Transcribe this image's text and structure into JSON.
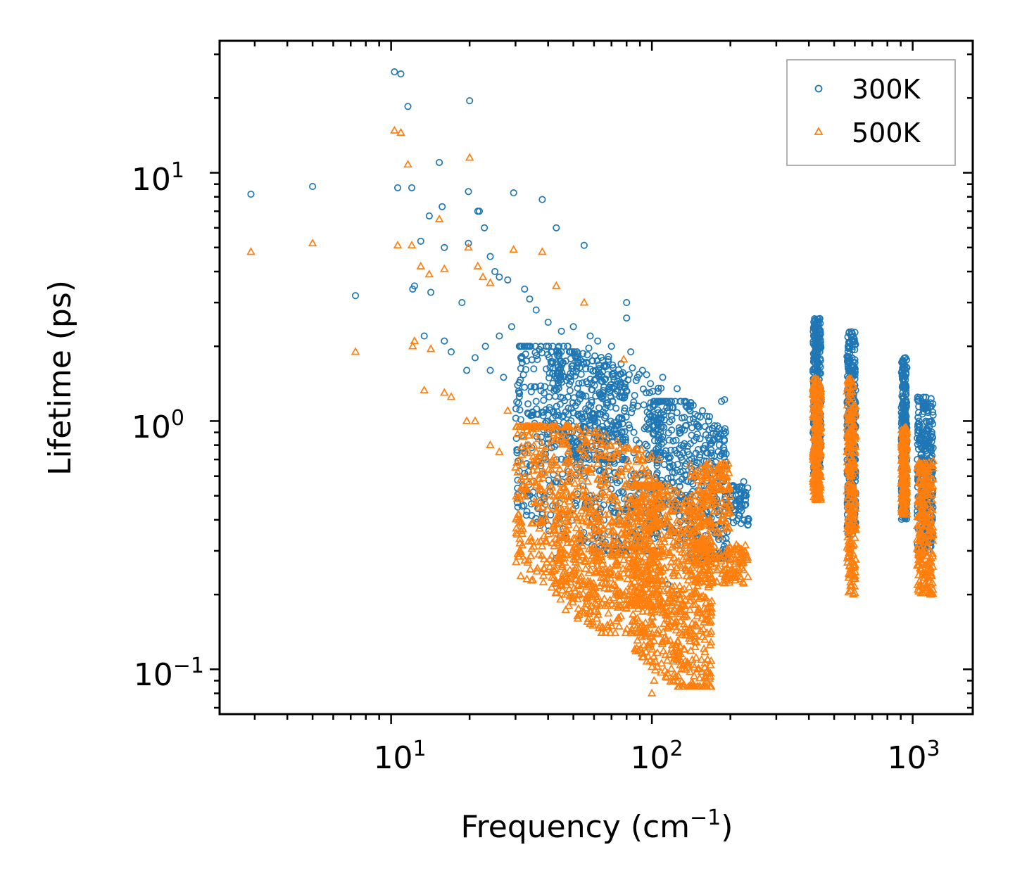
{
  "chart_data": {
    "type": "scatter",
    "xlabel": "Frequency (cm⁻¹)",
    "xlabel_main": "Frequency (cm",
    "xlabel_sup": "−1",
    "xlabel_end": ")",
    "ylabel": "Lifetime (ps)",
    "xscale": "log",
    "yscale": "log",
    "xlim": [
      2.2,
      1700
    ],
    "ylim": [
      0.066,
      34
    ],
    "grid": false,
    "legend_position": "top-right",
    "xticks": [
      {
        "value": 10,
        "base": "10",
        "exp": "1"
      },
      {
        "value": 100,
        "base": "10",
        "exp": "2"
      },
      {
        "value": 1000,
        "base": "10",
        "exp": "3"
      }
    ],
    "yticks": [
      {
        "value": 0.1,
        "base": "10",
        "exp": "−1"
      },
      {
        "value": 1,
        "base": "10",
        "exp": "0"
      },
      {
        "value": 10,
        "base": "10",
        "exp": "1"
      }
    ],
    "series": [
      {
        "name": "300K",
        "marker": "circle",
        "color": "#1f77b4",
        "points": [
          [
            2.9,
            8.2
          ],
          [
            5.0,
            8.8
          ],
          [
            7.3,
            3.2
          ],
          [
            10.3,
            25.5
          ],
          [
            10.9,
            25.0
          ],
          [
            11.6,
            18.5
          ],
          [
            10.6,
            8.7
          ],
          [
            12.0,
            8.7
          ],
          [
            13.0,
            5.3
          ],
          [
            14.0,
            6.7
          ],
          [
            15.3,
            11.0
          ],
          [
            15.7,
            7.3
          ],
          [
            12.1,
            3.4
          ],
          [
            12.3,
            3.5
          ],
          [
            14.2,
            3.3
          ],
          [
            13.4,
            2.2
          ],
          [
            16.0,
            5.0
          ],
          [
            16.0,
            2.1
          ],
          [
            18.7,
            3.0
          ],
          [
            19.5,
            1.6
          ],
          [
            20.0,
            19.5
          ],
          [
            19.8,
            8.4
          ],
          [
            21.5,
            7.0
          ],
          [
            21.8,
            7.0
          ],
          [
            22.8,
            6.0
          ],
          [
            19.8,
            5.2
          ],
          [
            24.0,
            4.6
          ],
          [
            25.0,
            4.0
          ],
          [
            26.0,
            3.8
          ],
          [
            28.0,
            3.7
          ],
          [
            29.5,
            8.3
          ],
          [
            38.0,
            7.8
          ],
          [
            43.0,
            6.0
          ],
          [
            55.0,
            5.1
          ],
          [
            80.0,
            3.0
          ],
          [
            80.0,
            2.6
          ],
          [
            32.5,
            3.4
          ],
          [
            34.0,
            3.1
          ],
          [
            36.0,
            2.8
          ],
          [
            40.0,
            2.5
          ],
          [
            45.0,
            2.3
          ],
          [
            50.0,
            2.4
          ],
          [
            58.0,
            2.2
          ],
          [
            62.0,
            2.1
          ],
          [
            70.0,
            2.0
          ],
          [
            83.0,
            1.9
          ],
          [
            17.0,
            1.9
          ],
          [
            21.0,
            1.8
          ],
          [
            23.0,
            2.0
          ],
          [
            26.0,
            2.2
          ],
          [
            29.0,
            2.4
          ],
          [
            24.0,
            1.6
          ],
          [
            27.0,
            1.5
          ],
          [
            31.0,
            1.3
          ],
          [
            36.0,
            1.2
          ],
          [
            40.0,
            1.0
          ],
          [
            44.0,
            0.95
          ],
          [
            48.0,
            0.9
          ],
          [
            38.0,
            0.42
          ],
          [
            43.0,
            0.28
          ],
          [
            88.0,
            1.5
          ],
          [
            92.0,
            1.6
          ],
          [
            95.0,
            1.3
          ],
          [
            110.0,
            1.5
          ],
          [
            125.0,
            1.35
          ],
          [
            133.0,
            1.2
          ],
          [
            140.0,
            1.1
          ],
          [
            150.0,
            1.05
          ],
          [
            160.0,
            0.95
          ],
          [
            165.0,
            1.0
          ],
          [
            185.0,
            1.2
          ],
          [
            190.0,
            1.22
          ],
          [
            192.0,
            0.9
          ],
          [
            205.0,
            0.55
          ],
          [
            210.0,
            0.5
          ],
          [
            220.0,
            0.45
          ],
          [
            230.0,
            0.5
          ],
          [
            225.0,
            0.57
          ],
          [
            135.0,
            0.25
          ],
          [
            125.0,
            0.2
          ],
          [
            115.0,
            0.22
          ]
        ],
        "clusters": [
          {
            "x": [
              30,
              110
            ],
            "y": [
              0.3,
              2.0
            ],
            "count": 650
          },
          {
            "x": [
              40,
              80
            ],
            "y": [
              0.7,
              1.9
            ],
            "count": 260
          },
          {
            "x": [
              100,
              195
            ],
            "y": [
              0.28,
              1.2
            ],
            "count": 450
          },
          {
            "x": [
              195,
              235
            ],
            "y": [
              0.38,
              0.55
            ],
            "count": 60
          },
          {
            "x": [
              415,
              445
            ],
            "y": [
              0.6,
              2.6
            ],
            "count": 300
          },
          {
            "x": [
              560,
              605
            ],
            "y": [
              0.35,
              2.3
            ],
            "count": 300
          },
          {
            "x": [
              905,
              950
            ],
            "y": [
              0.4,
              1.8
            ],
            "count": 260
          },
          {
            "x": [
              1040,
              1200
            ],
            "y": [
              0.3,
              1.25
            ],
            "count": 280
          }
        ]
      },
      {
        "name": "500K",
        "marker": "triangle",
        "color": "#ff7f0e",
        "points": [
          [
            2.9,
            4.8
          ],
          [
            5.0,
            5.2
          ],
          [
            7.3,
            1.9
          ],
          [
            10.3,
            14.8
          ],
          [
            10.9,
            14.5
          ],
          [
            11.6,
            10.8
          ],
          [
            10.6,
            5.1
          ],
          [
            12.0,
            5.1
          ],
          [
            13.0,
            4.2
          ],
          [
            15.3,
            6.5
          ],
          [
            16.0,
            4.1
          ],
          [
            14.0,
            3.9
          ],
          [
            12.3,
            2.1
          ],
          [
            12.1,
            2.0
          ],
          [
            14.2,
            1.95
          ],
          [
            13.4,
            1.33
          ],
          [
            16.0,
            1.3
          ],
          [
            17.0,
            1.25
          ],
          [
            19.5,
            1.0
          ],
          [
            20.0,
            11.5
          ],
          [
            19.8,
            5.0
          ],
          [
            21.5,
            4.2
          ],
          [
            22.5,
            3.8
          ],
          [
            24.0,
            3.6
          ],
          [
            29.5,
            4.9
          ],
          [
            38.0,
            4.8
          ],
          [
            43.0,
            3.5
          ],
          [
            55.0,
            3.0
          ],
          [
            78.0,
            1.77
          ],
          [
            36.0,
            0.75
          ],
          [
            28.0,
            1.1
          ],
          [
            32.0,
            0.9
          ],
          [
            21.0,
            1.0
          ],
          [
            24.0,
            0.8
          ],
          [
            26.0,
            0.75
          ],
          [
            30.0,
            0.65
          ],
          [
            34.0,
            0.6
          ],
          [
            36.0,
            0.55
          ],
          [
            38.0,
            0.45
          ],
          [
            40.0,
            0.35
          ],
          [
            42.0,
            0.25
          ],
          [
            45.0,
            0.22
          ],
          [
            48.0,
            0.18
          ],
          [
            52.0,
            0.16
          ],
          [
            58.0,
            0.17
          ],
          [
            100.0,
            0.08
          ],
          [
            102.0,
            0.09
          ],
          [
            130.0,
            0.1
          ],
          [
            150.0,
            0.1
          ],
          [
            162.0,
            0.09
          ],
          [
            205.0,
            0.25
          ],
          [
            220.0,
            0.3
          ],
          [
            230.0,
            0.28
          ],
          [
            165.0,
            0.65
          ],
          [
            185.0,
            0.6
          ]
        ],
        "clusters": [
          {
            "x": [
              30,
              110
            ],
            "y": [
              0.18,
              0.95
            ],
            "count": 700
          },
          {
            "x": [
              42,
              95
            ],
            "y": [
              0.14,
              0.5
            ],
            "count": 300
          },
          {
            "x": [
              85,
              170
            ],
            "y": [
              0.085,
              0.55
            ],
            "count": 700
          },
          {
            "x": [
              140,
              200
            ],
            "y": [
              0.22,
              0.68
            ],
            "count": 250
          },
          {
            "x": [
              190,
              235
            ],
            "y": [
              0.22,
              0.32
            ],
            "count": 60
          },
          {
            "x": [
              415,
              445
            ],
            "y": [
              0.48,
              1.5
            ],
            "count": 250
          },
          {
            "x": [
              560,
              605
            ],
            "y": [
              0.2,
              1.5
            ],
            "count": 250
          },
          {
            "x": [
              905,
              950
            ],
            "y": [
              0.42,
              0.95
            ],
            "count": 200
          },
          {
            "x": [
              1040,
              1200
            ],
            "y": [
              0.2,
              0.7
            ],
            "count": 250
          }
        ]
      }
    ]
  }
}
